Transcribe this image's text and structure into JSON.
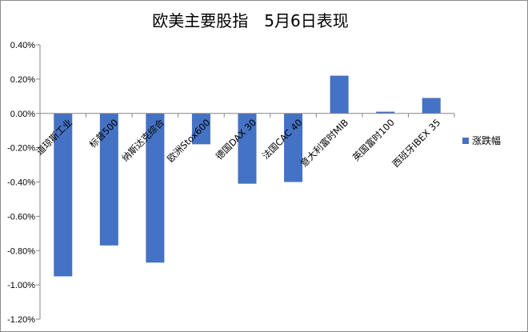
{
  "chart_data": {
    "type": "bar",
    "title": "欧美主要股指　5月6日表现",
    "categories": [
      "道琼斯工业",
      "标普500",
      "纳斯达克综合",
      "欧洲Stox600",
      "德国DAX 30",
      "法国CAC 40",
      "意大利富时MIB",
      "英国富时100",
      "西班牙IBEX 35"
    ],
    "series": [
      {
        "name": "涨跌幅",
        "color": "#4472C4",
        "values": [
          -0.0095,
          -0.0077,
          -0.0087,
          -0.0018,
          -0.0041,
          -0.004,
          0.0022,
          0.0001,
          0.0009
        ]
      }
    ],
    "ylim": [
      -0.012,
      0.004
    ],
    "yticks": [
      0.004,
      0.002,
      0.0,
      -0.002,
      -0.004,
      -0.006,
      -0.008,
      -0.01,
      -0.012
    ],
    "ytick_labels": [
      "0.40%",
      "0.20%",
      "0.00%",
      "-0.20%",
      "-0.40%",
      "-0.60%",
      "-0.80%",
      "-1.00%",
      "-1.20%"
    ],
    "xlabel": "",
    "ylabel": "",
    "grid": false,
    "legend": "right"
  }
}
